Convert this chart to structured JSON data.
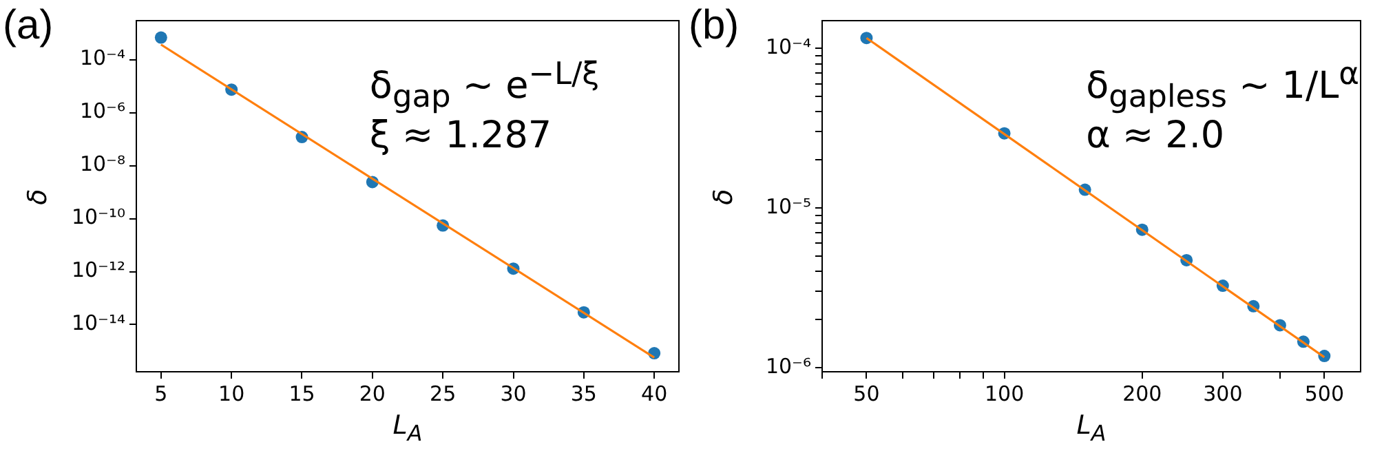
{
  "chart_data": [
    {
      "type": "scatter",
      "title": "(a)",
      "xlabel": "L$_{A}$",
      "ylabel": "δ",
      "log": "y",
      "grid": false,
      "legend": false,
      "annotations": [
        "δ$_{gap}$ ∼ e$^{−L/ξ}$",
        "ξ ≈ 1.287"
      ],
      "xlim": [
        3.25,
        41.75
      ],
      "xticks": [
        5,
        10,
        15,
        20,
        25,
        30,
        35,
        40
      ],
      "ylim": [
        1.66e-16,
        0.00296
      ],
      "yticks": [
        {
          "value": 0.0001,
          "label": "10⁻⁴"
        },
        {
          "value": 1e-06,
          "label": "10⁻⁶"
        },
        {
          "value": 1e-08,
          "label": "10⁻⁸"
        },
        {
          "value": 1e-10,
          "label": "10⁻¹⁰"
        },
        {
          "value": 1e-12,
          "label": "10⁻¹²"
        },
        {
          "value": 1e-14,
          "label": "10⁻¹⁴"
        }
      ],
      "series": [
        {
          "type": "scatter",
          "marker": "circle",
          "color": "#1f77b4",
          "x": [
            5,
            10,
            15,
            20,
            25,
            30,
            35,
            40
          ],
          "values": [
            0.00068,
            7.4e-06,
            1.2e-07,
            2.4e-09,
            5.5e-11,
            1.3e-12,
            2.9e-14,
            8.3e-16
          ]
        },
        {
          "type": "line",
          "marker": "none",
          "color": "#ff7f0e",
          "x": [
            5,
            40
          ],
          "values": [
            0.00037,
            5.7e-16
          ]
        }
      ]
    },
    {
      "type": "scatter",
      "title": "(b)",
      "xlabel": "L$_{A}$",
      "ylabel": "δ",
      "log": "xy",
      "grid": false,
      "legend": false,
      "annotations": [
        "δ$_{gapless}$ ∼ 1/L$^{α}$",
        "α ≈ 2.0"
      ],
      "xlim": [
        40,
        600
      ],
      "xticks": [
        {
          "value": 40,
          "label": null
        },
        50,
        {
          "value": 60,
          "label": null
        },
        {
          "value": 70,
          "label": null
        },
        {
          "value": 80,
          "label": null
        },
        {
          "value": 90,
          "label": null
        },
        100,
        200,
        300,
        {
          "value": 400,
          "label": null
        },
        500
      ],
      "ylim": [
        9.4e-07,
        0.000149
      ],
      "yticks": [
        {
          "value": 1e-06,
          "label": "10⁻⁶"
        },
        {
          "value": 2e-06,
          "label": null
        },
        {
          "value": 3e-06,
          "label": null
        },
        {
          "value": 4e-06,
          "label": null
        },
        {
          "value": 5e-06,
          "label": null
        },
        {
          "value": 6e-06,
          "label": null
        },
        {
          "value": 7e-06,
          "label": null
        },
        {
          "value": 8e-06,
          "label": null
        },
        {
          "value": 9e-06,
          "label": null
        },
        {
          "value": 1e-05,
          "label": "10⁻⁵"
        },
        {
          "value": 2e-05,
          "label": null
        },
        {
          "value": 3e-05,
          "label": null
        },
        {
          "value": 4e-05,
          "label": null
        },
        {
          "value": 5e-05,
          "label": null
        },
        {
          "value": 6e-05,
          "label": null
        },
        {
          "value": 7e-05,
          "label": null
        },
        {
          "value": 8e-05,
          "label": null
        },
        {
          "value": 9e-05,
          "label": null
        },
        {
          "value": 0.0001,
          "label": "10⁻⁴"
        }
      ],
      "series": [
        {
          "type": "scatter",
          "marker": "circle",
          "color": "#1f77b4",
          "x": [
            50,
            100,
            150,
            200,
            250,
            300,
            350,
            400,
            450,
            500
          ],
          "values": [
            0.000116,
            2.93e-05,
            1.3e-05,
            7.3e-06,
            4.7e-06,
            3.25e-06,
            2.42e-06,
            1.84e-06,
            1.45e-06,
            1.18e-06
          ]
        },
        {
          "type": "line",
          "marker": "none",
          "color": "#ff7f0e",
          "x": [
            50,
            500
          ],
          "values": [
            0.000116,
            1.16e-06
          ]
        }
      ]
    }
  ]
}
